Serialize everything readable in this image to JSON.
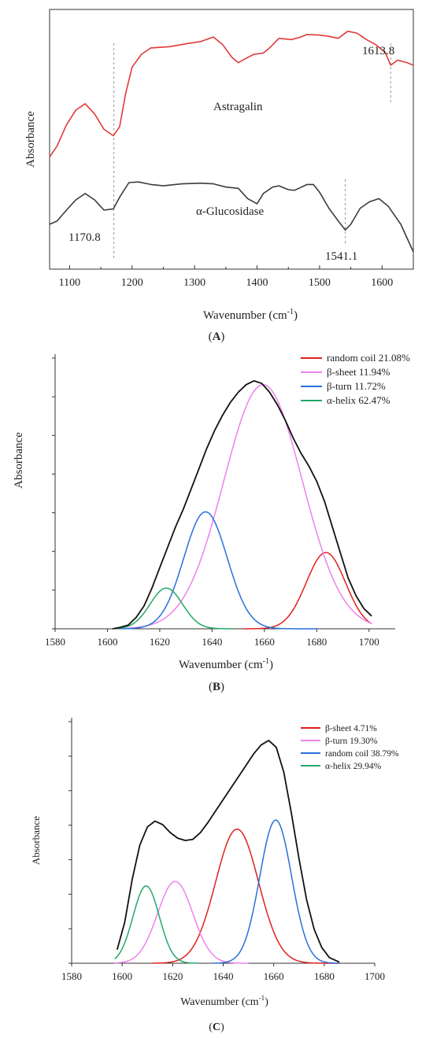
{
  "chart_data": [
    {
      "panel": "A",
      "type": "line",
      "xlabel": "Wavenumber (cm",
      "xlabel_sup": "-1",
      "xlabel_close": ")",
      "ylabel": "Absorbance",
      "xlim": [
        1068,
        1650
      ],
      "xticks": [
        1100,
        1200,
        1300,
        1400,
        1500,
        1600
      ],
      "series": [
        {
          "name": "Astragalin",
          "color": "#e03a3a",
          "points": [
            [
              1068,
              -0.05
            ],
            [
              1080,
              0.12
            ],
            [
              1095,
              0.45
            ],
            [
              1110,
              0.68
            ],
            [
              1125,
              0.78
            ],
            [
              1140,
              0.62
            ],
            [
              1155,
              0.38
            ],
            [
              1170,
              0.28
            ],
            [
              1180,
              0.42
            ],
            [
              1190,
              0.95
            ],
            [
              1200,
              1.35
            ],
            [
              1215,
              1.55
            ],
            [
              1230,
              1.65
            ],
            [
              1260,
              1.67
            ],
            [
              1290,
              1.72
            ],
            [
              1310,
              1.75
            ],
            [
              1330,
              1.82
            ],
            [
              1345,
              1.7
            ],
            [
              1360,
              1.5
            ],
            [
              1370,
              1.42
            ],
            [
              1385,
              1.5
            ],
            [
              1395,
              1.55
            ],
            [
              1410,
              1.57
            ],
            [
              1420,
              1.65
            ],
            [
              1435,
              1.8
            ],
            [
              1455,
              1.78
            ],
            [
              1470,
              1.82
            ],
            [
              1480,
              1.86
            ],
            [
              1500,
              1.85
            ],
            [
              1515,
              1.83
            ],
            [
              1530,
              1.8
            ],
            [
              1545,
              1.91
            ],
            [
              1560,
              1.88
            ],
            [
              1575,
              1.78
            ],
            [
              1590,
              1.7
            ],
            [
              1605,
              1.58
            ],
            [
              1613.8,
              1.38
            ],
            [
              1625,
              1.46
            ],
            [
              1640,
              1.42
            ],
            [
              1650,
              1.38
            ]
          ]
        },
        {
          "name": "α-Glucosidase",
          "color": "#3c3c3c",
          "points": [
            [
              1068,
              -1.1
            ],
            [
              1080,
              -1.05
            ],
            [
              1095,
              -0.88
            ],
            [
              1110,
              -0.72
            ],
            [
              1125,
              -0.62
            ],
            [
              1140,
              -0.72
            ],
            [
              1155,
              -0.88
            ],
            [
              1170,
              -0.86
            ],
            [
              1180,
              -0.68
            ],
            [
              1195,
              -0.45
            ],
            [
              1210,
              -0.44
            ],
            [
              1230,
              -0.48
            ],
            [
              1250,
              -0.5
            ],
            [
              1280,
              -0.47
            ],
            [
              1310,
              -0.46
            ],
            [
              1330,
              -0.47
            ],
            [
              1350,
              -0.52
            ],
            [
              1370,
              -0.54
            ],
            [
              1385,
              -0.7
            ],
            [
              1400,
              -0.78
            ],
            [
              1410,
              -0.62
            ],
            [
              1425,
              -0.52
            ],
            [
              1435,
              -0.5
            ],
            [
              1450,
              -0.56
            ],
            [
              1460,
              -0.57
            ],
            [
              1480,
              -0.48
            ],
            [
              1490,
              -0.48
            ],
            [
              1500,
              -0.6
            ],
            [
              1515,
              -0.85
            ],
            [
              1530,
              -1.05
            ],
            [
              1541.1,
              -1.19
            ],
            [
              1550,
              -1.1
            ],
            [
              1565,
              -0.85
            ],
            [
              1580,
              -0.75
            ],
            [
              1595,
              -0.7
            ],
            [
              1610,
              -0.82
            ],
            [
              1630,
              -1.1
            ],
            [
              1650,
              -1.53
            ]
          ]
        }
      ],
      "labels": [
        "Astragalin",
        "α-Glucosidase"
      ],
      "annotations": [
        "1613.8",
        "1170.8",
        "1541.1"
      ],
      "marker_lines": [
        1170.8,
        1541.1,
        1613.8
      ],
      "caption": "(A)",
      "caption_letter": "A"
    },
    {
      "panel": "B",
      "type": "line",
      "xlabel": "Wavenumber (cm",
      "xlabel_sup": "-1",
      "xlabel_close": ")",
      "ylabel": "Absorbance",
      "xlim": [
        1580,
        1710
      ],
      "xticks": [
        1580,
        1600,
        1620,
        1640,
        1660,
        1680,
        1700
      ],
      "ylim": [
        0,
        1.08
      ],
      "envelope": {
        "color": "#111111",
        "points": [
          [
            1602,
            0.0
          ],
          [
            1605,
            0.006
          ],
          [
            1608,
            0.015
          ],
          [
            1611,
            0.045
          ],
          [
            1614,
            0.09
          ],
          [
            1617,
            0.16
          ],
          [
            1620,
            0.24
          ],
          [
            1623,
            0.32
          ],
          [
            1626,
            0.4
          ],
          [
            1629,
            0.47
          ],
          [
            1632,
            0.55
          ],
          [
            1635,
            0.63
          ],
          [
            1638,
            0.71
          ],
          [
            1641,
            0.78
          ],
          [
            1644,
            0.84
          ],
          [
            1647,
            0.89
          ],
          [
            1650,
            0.93
          ],
          [
            1653,
            0.96
          ],
          [
            1656,
            0.975
          ],
          [
            1659,
            0.965
          ],
          [
            1662,
            0.93
          ],
          [
            1665,
            0.88
          ],
          [
            1668,
            0.82
          ],
          [
            1671,
            0.75
          ],
          [
            1674,
            0.69
          ],
          [
            1677,
            0.64
          ],
          [
            1680,
            0.58
          ],
          [
            1683,
            0.5
          ],
          [
            1686,
            0.4
          ],
          [
            1689,
            0.3
          ],
          [
            1692,
            0.2
          ],
          [
            1695,
            0.13
          ],
          [
            1698,
            0.08
          ],
          [
            1701,
            0.05
          ]
        ]
      },
      "series": [
        {
          "name": "random coil  21.08%",
          "color": "#e02020",
          "center": 1683.5,
          "height": 0.3,
          "sigma": 7.5,
          "range": [
            1652,
            1701
          ]
        },
        {
          "name": "β-sheet 11.94%",
          "color": "#ee82ee",
          "center": 1659.5,
          "height": 0.96,
          "sigma": 15.0,
          "range": [
            1607,
            1701
          ]
        },
        {
          "name": "β-turn 11.72%",
          "color": "#2a6fdb",
          "center": 1637.5,
          "height": 0.46,
          "sigma": 8.3,
          "range": [
            1605,
            1680
          ]
        },
        {
          "name": "α-helix 62.47%",
          "color": "#23a866",
          "center": 1622.5,
          "height": 0.16,
          "sigma": 6.2,
          "range": [
            1603,
            1648
          ]
        }
      ],
      "caption": "(B)",
      "caption_letter": "B"
    },
    {
      "panel": "C",
      "type": "line",
      "xlabel": "Wavenumber (cm",
      "xlabel_sup": "-1",
      "xlabel_close": ")",
      "ylabel": "Absorbance",
      "xlim": [
        1580,
        1700
      ],
      "xticks": [
        1580,
        1600,
        1620,
        1640,
        1660,
        1680,
        1700
      ],
      "ylim": [
        0,
        1.08
      ],
      "envelope": {
        "color": "#111111",
        "points": [
          [
            1598,
            0.06
          ],
          [
            1601,
            0.18
          ],
          [
            1604,
            0.37
          ],
          [
            1607,
            0.52
          ],
          [
            1610,
            0.6
          ],
          [
            1613,
            0.625
          ],
          [
            1616,
            0.61
          ],
          [
            1619,
            0.575
          ],
          [
            1622,
            0.55
          ],
          [
            1625,
            0.54
          ],
          [
            1628,
            0.545
          ],
          [
            1631,
            0.575
          ],
          [
            1634,
            0.62
          ],
          [
            1637,
            0.67
          ],
          [
            1640,
            0.72
          ],
          [
            1643,
            0.77
          ],
          [
            1646,
            0.82
          ],
          [
            1649,
            0.87
          ],
          [
            1652,
            0.92
          ],
          [
            1655,
            0.96
          ],
          [
            1658,
            0.98
          ],
          [
            1661,
            0.95
          ],
          [
            1664,
            0.84
          ],
          [
            1667,
            0.66
          ],
          [
            1670,
            0.46
          ],
          [
            1673,
            0.28
          ],
          [
            1676,
            0.15
          ],
          [
            1679,
            0.07
          ],
          [
            1682,
            0.025
          ],
          [
            1686,
            0.005
          ]
        ]
      },
      "series": [
        {
          "name": "β-sheet 4.71%",
          "color": "#e02020",
          "center": 1645.5,
          "height": 0.59,
          "sigma": 8.5,
          "range": [
            1612,
            1686
          ]
        },
        {
          "name": "β-turn 19.30%",
          "color": "#ee82ee",
          "center": 1621.0,
          "height": 0.36,
          "sigma": 7.0,
          "range": [
            1597,
            1650
          ]
        },
        {
          "name": "random coil 38.79%",
          "color": "#2a6fdb",
          "center": 1660.8,
          "height": 0.63,
          "sigma": 6.3,
          "range": [
            1636,
            1686
          ]
        },
        {
          "name": "α-helix 29.94%",
          "color": "#23a866",
          "center": 1609.5,
          "height": 0.34,
          "sigma": 5.2,
          "range": [
            1597,
            1630
          ]
        }
      ],
      "caption": "(C)",
      "caption_letter": "C"
    }
  ]
}
